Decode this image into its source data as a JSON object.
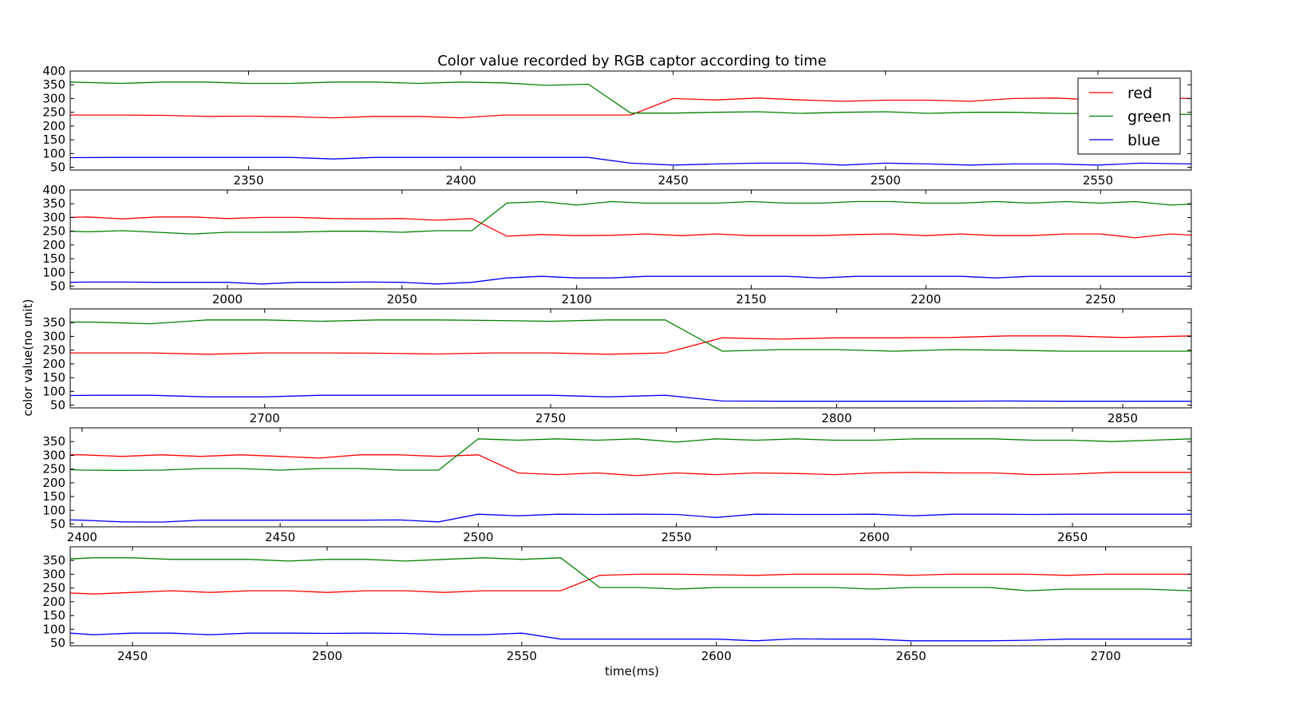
{
  "figure": {
    "title": "Color value recorded by RGB captor according to time",
    "xlabel": "time(ms)",
    "ylabel": "color value(no unit)"
  },
  "legend": {
    "entries": [
      {
        "label": "red",
        "color": "#ff0000"
      },
      {
        "label": "green",
        "color": "#008000"
      },
      {
        "label": "blue",
        "color": "#0000ff"
      }
    ]
  },
  "chart_data": [
    {
      "type": "line",
      "xlim": [
        2308,
        2572
      ],
      "ylim": [
        40,
        400
      ],
      "xticks": [
        2350,
        2400,
        2450,
        2500,
        2550
      ],
      "yticks": [
        50,
        100,
        150,
        200,
        250,
        300,
        350,
        400
      ],
      "x": [
        2308,
        2320,
        2330,
        2340,
        2350,
        2360,
        2370,
        2380,
        2390,
        2400,
        2410,
        2420,
        2430,
        2440,
        2450,
        2460,
        2470,
        2480,
        2490,
        2500,
        2510,
        2520,
        2530,
        2540,
        2550,
        2560,
        2572
      ],
      "series": [
        {
          "name": "red",
          "color": "#ff0000",
          "values": [
            240,
            240,
            239,
            235,
            236,
            234,
            230,
            235,
            235,
            230,
            240,
            240,
            240,
            240,
            300,
            295,
            302,
            295,
            290,
            294,
            294,
            290,
            300,
            302,
            295,
            300,
            300
          ]
        },
        {
          "name": "green",
          "color": "#008000",
          "values": [
            360,
            355,
            360,
            360,
            355,
            355,
            360,
            360,
            355,
            360,
            357,
            348,
            352,
            247,
            247,
            250,
            252,
            246,
            250,
            252,
            246,
            250,
            250,
            246,
            245,
            245,
            242
          ]
        },
        {
          "name": "blue",
          "color": "#0000ff",
          "values": [
            85,
            86,
            86,
            86,
            86,
            86,
            80,
            86,
            86,
            86,
            86,
            86,
            86,
            65,
            58,
            62,
            65,
            65,
            58,
            65,
            62,
            58,
            62,
            62,
            58,
            65,
            62
          ]
        }
      ]
    },
    {
      "type": "line",
      "xlim": [
        1955,
        2276
      ],
      "ylim": [
        40,
        400
      ],
      "xticks": [
        2000,
        2050,
        2100,
        2150,
        2200,
        2250
      ],
      "yticks": [
        50,
        100,
        150,
        200,
        250,
        300,
        350,
        400
      ],
      "x": [
        1955,
        1960,
        1970,
        1980,
        1990,
        2000,
        2010,
        2020,
        2030,
        2040,
        2050,
        2060,
        2070,
        2080,
        2090,
        2100,
        2110,
        2120,
        2130,
        2140,
        2150,
        2160,
        2170,
        2180,
        2190,
        2200,
        2210,
        2220,
        2230,
        2240,
        2250,
        2260,
        2270,
        2276
      ],
      "series": [
        {
          "name": "red",
          "color": "#ff0000",
          "values": [
            300,
            302,
            295,
            302,
            302,
            296,
            300,
            300,
            296,
            295,
            296,
            290,
            296,
            232,
            238,
            234,
            235,
            240,
            234,
            240,
            234,
            234,
            234,
            238,
            240,
            234,
            240,
            234,
            234,
            240,
            240,
            226,
            240,
            236
          ]
        },
        {
          "name": "green",
          "color": "#008000",
          "values": [
            250,
            248,
            252,
            246,
            240,
            246,
            246,
            247,
            250,
            250,
            246,
            252,
            252,
            352,
            358,
            345,
            358,
            352,
            352,
            352,
            358,
            352,
            352,
            358,
            358,
            352,
            352,
            358,
            352,
            358,
            352,
            358,
            345,
            348
          ]
        },
        {
          "name": "blue",
          "color": "#0000ff",
          "values": [
            64,
            65,
            65,
            64,
            64,
            64,
            58,
            64,
            64,
            65,
            64,
            58,
            64,
            80,
            86,
            80,
            80,
            86,
            86,
            86,
            86,
            86,
            80,
            86,
            86,
            86,
            86,
            80,
            86,
            86,
            86,
            86,
            86,
            86
          ]
        }
      ]
    },
    {
      "type": "line",
      "xlim": [
        2666,
        2862
      ],
      "ylim": [
        40,
        400
      ],
      "xticks": [
        2700,
        2750,
        2800,
        2850
      ],
      "yticks": [
        50,
        100,
        150,
        200,
        250,
        300,
        350
      ],
      "x": [
        2666,
        2670,
        2680,
        2690,
        2700,
        2710,
        2720,
        2730,
        2740,
        2750,
        2760,
        2770,
        2780,
        2790,
        2800,
        2810,
        2820,
        2830,
        2840,
        2850,
        2862
      ],
      "series": [
        {
          "name": "red",
          "color": "#ff0000",
          "values": [
            240,
            240,
            240,
            235,
            240,
            240,
            239,
            236,
            240,
            240,
            235,
            240,
            295,
            290,
            295,
            295,
            296,
            302,
            302,
            296,
            302
          ]
        },
        {
          "name": "green",
          "color": "#008000",
          "values": [
            352,
            352,
            346,
            360,
            360,
            355,
            360,
            360,
            358,
            355,
            360,
            360,
            246,
            252,
            252,
            246,
            252,
            250,
            246,
            246,
            246
          ]
        },
        {
          "name": "blue",
          "color": "#0000ff",
          "values": [
            85,
            86,
            86,
            80,
            80,
            86,
            86,
            86,
            86,
            86,
            80,
            86,
            65,
            64,
            64,
            64,
            64,
            65,
            64,
            64,
            64
          ]
        }
      ]
    },
    {
      "type": "line",
      "xlim": [
        2397,
        2680
      ],
      "ylim": [
        40,
        400
      ],
      "xticks": [
        2400,
        2450,
        2500,
        2550,
        2600,
        2650
      ],
      "yticks": [
        50,
        100,
        150,
        200,
        250,
        300,
        350
      ],
      "x": [
        2397,
        2400,
        2410,
        2420,
        2430,
        2440,
        2450,
        2460,
        2470,
        2480,
        2490,
        2500,
        2510,
        2520,
        2530,
        2540,
        2550,
        2560,
        2570,
        2580,
        2590,
        2600,
        2610,
        2620,
        2630,
        2640,
        2650,
        2660,
        2670,
        2680
      ],
      "series": [
        {
          "name": "red",
          "color": "#ff0000",
          "values": [
            302,
            302,
            296,
            302,
            296,
            302,
            296,
            290,
            302,
            302,
            296,
            302,
            236,
            230,
            236,
            226,
            236,
            230,
            236,
            234,
            230,
            236,
            238,
            236,
            236,
            230,
            232,
            238,
            238,
            238
          ]
        },
        {
          "name": "green",
          "color": "#008000",
          "values": [
            248,
            246,
            245,
            246,
            252,
            252,
            246,
            252,
            252,
            246,
            246,
            360,
            355,
            360,
            355,
            360,
            348,
            360,
            355,
            360,
            355,
            355,
            360,
            360,
            360,
            355,
            355,
            350,
            355,
            360
          ]
        },
        {
          "name": "blue",
          "color": "#0000ff",
          "values": [
            65,
            64,
            58,
            57,
            64,
            64,
            64,
            64,
            64,
            65,
            58,
            86,
            80,
            86,
            85,
            86,
            85,
            74,
            86,
            85,
            85,
            86,
            80,
            86,
            86,
            85,
            86,
            86,
            86,
            86
          ]
        }
      ]
    },
    {
      "type": "line",
      "xlim": [
        2434,
        2722
      ],
      "ylim": [
        40,
        400
      ],
      "xticks": [
        2450,
        2500,
        2550,
        2600,
        2650,
        2700
      ],
      "yticks": [
        50,
        100,
        150,
        200,
        250,
        300,
        350
      ],
      "x": [
        2434,
        2440,
        2450,
        2460,
        2470,
        2480,
        2490,
        2500,
        2510,
        2520,
        2530,
        2540,
        2550,
        2560,
        2570,
        2580,
        2590,
        2600,
        2610,
        2620,
        2630,
        2640,
        2650,
        2660,
        2670,
        2680,
        2690,
        2700,
        2710,
        2722
      ],
      "series": [
        {
          "name": "red",
          "color": "#ff0000",
          "values": [
            232,
            228,
            234,
            240,
            234,
            240,
            240,
            234,
            240,
            240,
            234,
            240,
            240,
            240,
            296,
            300,
            300,
            298,
            296,
            300,
            300,
            300,
            296,
            300,
            300,
            300,
            296,
            300,
            300,
            300
          ]
        },
        {
          "name": "green",
          "color": "#008000",
          "values": [
            356,
            360,
            360,
            354,
            354,
            354,
            348,
            354,
            354,
            348,
            354,
            360,
            354,
            360,
            252,
            252,
            246,
            252,
            252,
            252,
            252,
            246,
            252,
            252,
            252,
            240,
            246,
            246,
            246,
            240
          ]
        },
        {
          "name": "blue",
          "color": "#0000ff",
          "values": [
            86,
            80,
            86,
            86,
            80,
            86,
            86,
            85,
            86,
            85,
            80,
            80,
            86,
            64,
            64,
            64,
            64,
            64,
            58,
            65,
            64,
            64,
            58,
            58,
            58,
            60,
            64,
            64,
            64,
            64
          ]
        }
      ]
    }
  ]
}
